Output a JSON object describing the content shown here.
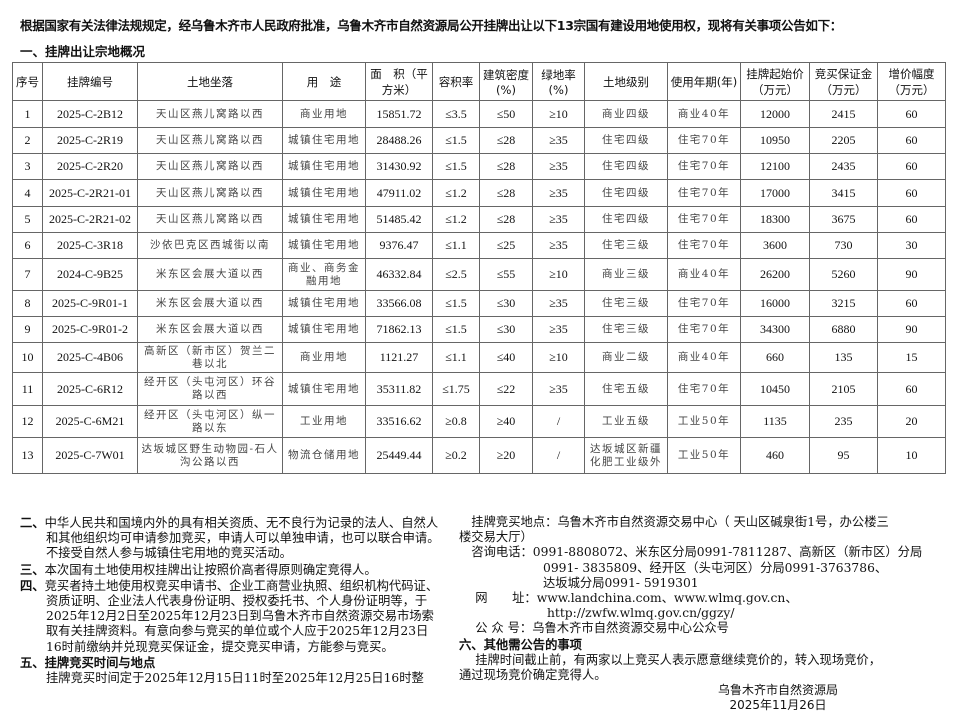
{
  "intro": "根据国家有关法律法规规定，经乌鲁木齐市人民政府批准，乌鲁木齐市自然资源局公开挂牌出让以下13宗国有建设用地使用权，现将有关事项公告如下：",
  "section1_title": "一、挂牌出让宗地概况",
  "table": {
    "headers": [
      "序号",
      "挂牌编号",
      "土地坐落",
      "用　途",
      "面　积（平方米）",
      "容积率",
      "建筑密度(%)",
      "绿地率(%)",
      "土地级别",
      "使用年期(年)",
      "挂牌起始价（万元）",
      "竞买保证金（万元）",
      "增价幅度（万元）"
    ],
    "rows": [
      [
        "1",
        "2025-C-2B12",
        "天山区燕儿窝路以西",
        "商业用地",
        "15851.72",
        "≤3.5",
        "≤50",
        "≥10",
        "商业四级",
        "商业40年",
        "12000",
        "2415",
        "60"
      ],
      [
        "2",
        "2025-C-2R19",
        "天山区燕儿窝路以西",
        "城镇住宅用地",
        "28488.26",
        "≤1.5",
        "≤28",
        "≥35",
        "住宅四级",
        "住宅70年",
        "10950",
        "2205",
        "60"
      ],
      [
        "3",
        "2025-C-2R20",
        "天山区燕儿窝路以西",
        "城镇住宅用地",
        "31430.92",
        "≤1.5",
        "≤28",
        "≥35",
        "住宅四级",
        "住宅70年",
        "12100",
        "2435",
        "60"
      ],
      [
        "4",
        "2025-C-2R21-01",
        "天山区燕儿窝路以西",
        "城镇住宅用地",
        "47911.02",
        "≤1.2",
        "≤28",
        "≥35",
        "住宅四级",
        "住宅70年",
        "17000",
        "3415",
        "60"
      ],
      [
        "5",
        "2025-C-2R21-02",
        "天山区燕儿窝路以西",
        "城镇住宅用地",
        "51485.42",
        "≤1.2",
        "≤28",
        "≥35",
        "住宅四级",
        "住宅70年",
        "18300",
        "3675",
        "60"
      ],
      [
        "6",
        "2025-C-3R18",
        "沙依巴克区西城街以南",
        "城镇住宅用地",
        "9376.47",
        "≤1.1",
        "≤25",
        "≥35",
        "住宅三级",
        "住宅70年",
        "3600",
        "730",
        "30"
      ],
      [
        "7",
        "2024-C-9B25",
        "米东区会展大道以西",
        "商业、商务金融用地",
        "46332.84",
        "≤2.5",
        "≤55",
        "≥10",
        "商业三级",
        "商业40年",
        "26200",
        "5260",
        "90"
      ],
      [
        "8",
        "2025-C-9R01-1",
        "米东区会展大道以西",
        "城镇住宅用地",
        "33566.08",
        "≤1.5",
        "≤30",
        "≥35",
        "住宅三级",
        "住宅70年",
        "16000",
        "3215",
        "60"
      ],
      [
        "9",
        "2025-C-9R01-2",
        "米东区会展大道以西",
        "城镇住宅用地",
        "71862.13",
        "≤1.5",
        "≤30",
        "≥35",
        "住宅三级",
        "住宅70年",
        "34300",
        "6880",
        "90"
      ],
      [
        "10",
        "2025-C-4B06",
        "高新区（新市区）贺兰二巷以北",
        "商业用地",
        "1121.27",
        "≤1.1",
        "≤40",
        "≥10",
        "商业二级",
        "商业40年",
        "660",
        "135",
        "15"
      ],
      [
        "11",
        "2025-C-6R12",
        "经开区（头屯河区）环谷路以西",
        "城镇住宅用地",
        "35311.82",
        "≤1.75",
        "≤22",
        "≥35",
        "住宅五级",
        "住宅70年",
        "10450",
        "2105",
        "60"
      ],
      [
        "12",
        "2025-C-6M21",
        "经开区（头屯河区）纵一路以东",
        "工业用地",
        "33516.62",
        "≥0.8",
        "≥40",
        "/",
        "工业五级",
        "工业50年",
        "1135",
        "235",
        "20"
      ],
      [
        "13",
        "2025-C-7W01",
        "达坂城区野生动物园-石人沟公路以西",
        "物流仓储用地",
        "25449.44",
        "≥0.2",
        "≥20",
        "/",
        "达坂城区新疆化肥工业级外",
        "工业50年",
        "460",
        "95",
        "10"
      ]
    ]
  },
  "left": {
    "s2_head": "二、",
    "s2": "中华人民共和国境内外的具有相关资质、无不良行为记录的法人、自然人和其他组织均可申请参加竞买，申请人可以单独申请，也可以联合申请。不接受自然人参与城镇住宅用地的竞买活动。",
    "s3_head": "三、",
    "s3": "本次国有土地使用权挂牌出让按照价高者得原则确定竞得人。",
    "s4_head": "四、",
    "s4": "竞买者持土地使用权竞买申请书、企业工商营业执照、组织机构代码证、资质证明、企业法人代表身份证明、授权委托书、个人身份证明等，于2025年12月2日至2025年12月23日到乌鲁木齐市自然资源交易市场索取有关挂牌资料。有意向参与竞买的单位或个人应于2025年12月23日16时前缴纳并兑现竞买保证金，提交竞买申请，方能参与竞买。",
    "s5_title": "五、挂牌竞买时间与地点",
    "s5": "挂牌竞买时间定于2025年12月15日11时至2025年12月25日16时整"
  },
  "right": {
    "place_1": "　挂牌竞买地点：乌鲁木齐市自然资源交易中心（ 天山区碱泉街1号，办公楼三",
    "place_2": "楼交易大厅）",
    "phone_label": "　咨询电话：",
    "phone_1": "0991-8808072、米东区分局0991-7811287、高新区（新市区）分局",
    "phone_2": "0991- 3835809、经开区（头屯河区）分局0991-3763786、",
    "phone_3": "达坂城分局0991- 5919301",
    "web_label": "　 网　　址：",
    "web_1": "www.landchina.com、www.wlmq.gov.cn、",
    "web_2": "http://zwfw.wlmq.gov.cn/ggzy/",
    "wechat": "　 公 众 号：乌鲁木齐市自然资源交易中心公众号",
    "s6_title": "六、其他需公告的事项",
    "s6_1": "　 挂牌时间截止前，有两家以上竞买人表示愿意继续竞价的，转入现场竞价，",
    "s6_2": "通过现场竞价确定竞得人。"
  },
  "signature": {
    "org": "乌鲁木齐市自然资源局",
    "date": "2025年11月26日"
  }
}
